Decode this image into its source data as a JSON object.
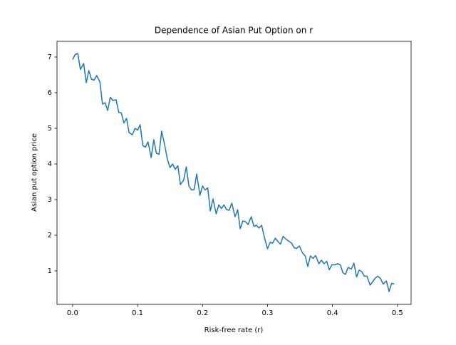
{
  "chart_data": {
    "type": "line",
    "title": "Dependence of Asian Put Option on r",
    "x_label": "Risk-free rate (r)",
    "y_label": "Asian put option price",
    "x": [
      0,
      0.004,
      0.008,
      0.012,
      0.017,
      0.021,
      0.025,
      0.029,
      0.033,
      0.037,
      0.042,
      0.046,
      0.05,
      0.054,
      0.058,
      0.062,
      0.067,
      0.071,
      0.075,
      0.079,
      0.083,
      0.087,
      0.092,
      0.096,
      0.1,
      0.104,
      0.108,
      0.112,
      0.116,
      0.121,
      0.125,
      0.129,
      0.133,
      0.137,
      0.141,
      0.146,
      0.15,
      0.154,
      0.158,
      0.162,
      0.166,
      0.171,
      0.175,
      0.179,
      0.183,
      0.187,
      0.191,
      0.196,
      0.2,
      0.204,
      0.208,
      0.212,
      0.216,
      0.221,
      0.225,
      0.229,
      0.233,
      0.237,
      0.241,
      0.245,
      0.25,
      0.254,
      0.258,
      0.262,
      0.266,
      0.27,
      0.275,
      0.279,
      0.283,
      0.287,
      0.291,
      0.295,
      0.3,
      0.304,
      0.308,
      0.312,
      0.316,
      0.32,
      0.324,
      0.329,
      0.333,
      0.337,
      0.341,
      0.345,
      0.349,
      0.354,
      0.358,
      0.362,
      0.366,
      0.37,
      0.374,
      0.379,
      0.383,
      0.387,
      0.391,
      0.395,
      0.399,
      0.404,
      0.408,
      0.412,
      0.416,
      0.42,
      0.424,
      0.429,
      0.433,
      0.437,
      0.441,
      0.445,
      0.449,
      0.453,
      0.458,
      0.462,
      0.466,
      0.47,
      0.474,
      0.478,
      0.483,
      0.487,
      0.491,
      0.495
    ],
    "series": [
      {
        "color": "#1f77b4",
        "values": [
          6.93,
          7.07,
          7.1,
          6.65,
          6.82,
          6.28,
          6.62,
          6.38,
          6.35,
          6.48,
          6.3,
          5.68,
          5.72,
          5.5,
          5.87,
          5.78,
          5.8,
          5.45,
          5.43,
          5.15,
          5.28,
          4.88,
          4.82,
          5.0,
          4.95,
          5.1,
          4.52,
          4.47,
          4.62,
          4.18,
          4.68,
          4.3,
          4.27,
          4.92,
          4.6,
          4.12,
          3.9,
          4.0,
          3.85,
          3.95,
          3.42,
          3.55,
          3.92,
          3.38,
          3.27,
          3.28,
          3.72,
          3.12,
          3.38,
          3.27,
          3.33,
          2.68,
          3.02,
          2.6,
          2.85,
          2.75,
          2.85,
          2.72,
          2.7,
          2.9,
          2.52,
          2.72,
          2.18,
          2.4,
          2.38,
          2.3,
          2.52,
          2.25,
          2.28,
          2.2,
          2.28,
          1.95,
          1.62,
          1.8,
          1.78,
          1.92,
          1.82,
          1.75,
          1.97,
          1.88,
          1.83,
          1.78,
          1.65,
          1.63,
          1.7,
          1.5,
          1.42,
          1.12,
          1.42,
          1.35,
          1.43,
          1.2,
          1.3,
          1.2,
          1.27,
          1.03,
          1.17,
          1.17,
          1.2,
          1.17,
          0.95,
          0.9,
          1.1,
          1.05,
          1.22,
          0.83,
          1.02,
          0.98,
          0.85,
          0.85,
          0.6,
          0.7,
          0.8,
          0.85,
          0.78,
          0.63,
          0.72,
          0.42,
          0.65,
          0.63
        ]
      }
    ],
    "xlim": [
      -0.024,
      0.521
    ],
    "ylim": [
      0.06,
      7.44
    ],
    "xticks": [
      {
        "value": 0,
        "label": "0.0"
      },
      0.1,
      0.2,
      0.3,
      0.4,
      0.5
    ],
    "yticks": [
      1,
      2,
      3,
      4,
      5,
      6,
      7
    ],
    "grid": false
  }
}
